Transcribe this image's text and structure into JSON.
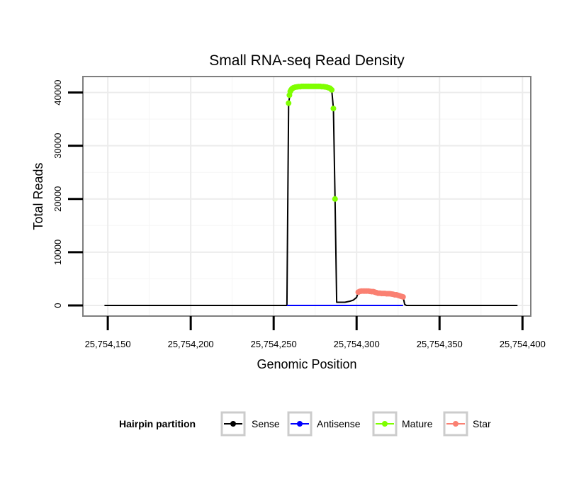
{
  "chart_data": {
    "type": "line",
    "title": "Small RNA-seq Read Density",
    "xlabel": "Genomic Position",
    "ylabel": "Total Reads",
    "xlim": [
      25754135,
      25754405
    ],
    "ylim": [
      -2000,
      43000
    ],
    "x_ticks": [
      25754150,
      25754200,
      25754250,
      25754300,
      25754350,
      25754400
    ],
    "x_tick_labels": [
      "25,754,150",
      "25,754,200",
      "25,754,250",
      "25,754,300",
      "25,754,350",
      "25,754,400"
    ],
    "y_ticks": [
      0,
      10000,
      20000,
      30000,
      40000
    ],
    "y_tick_labels": [
      "0",
      "10000",
      "20000",
      "30000",
      "40000"
    ],
    "grid": true,
    "legend": {
      "title": "Hairpin partition",
      "position": "bottom",
      "entries": [
        {
          "name": "Sense",
          "color": "#000000"
        },
        {
          "name": "Antisense",
          "color": "#0000ff"
        },
        {
          "name": "Mature",
          "color": "#7fff00"
        },
        {
          "name": "Star",
          "color": "#fa8072"
        }
      ]
    },
    "series": [
      {
        "name": "Sense",
        "style": "line",
        "color": "#000000",
        "x": [
          25754148,
          25754258,
          25754259,
          25754260,
          25754262,
          25754265,
          25754270,
          25754275,
          25754280,
          25754284,
          25754285,
          25754286,
          25754287,
          25754288,
          25754290,
          25754293,
          25754296,
          25754298,
          25754300,
          25754301,
          25754305,
          25754310,
          25754315,
          25754320,
          25754325,
          25754327,
          25754328,
          25754329,
          25754330,
          25754397
        ],
        "y": [
          0,
          0,
          38000,
          40000,
          40800,
          41000,
          41100,
          41100,
          41100,
          41000,
          40500,
          37000,
          20000,
          600,
          600,
          600,
          800,
          1000,
          1500,
          2500,
          2700,
          2600,
          2300,
          2200,
          2000,
          1800,
          1600,
          200,
          0,
          0
        ]
      },
      {
        "name": "Antisense",
        "style": "line",
        "color": "#0000ff",
        "x": [
          25754258,
          25754328
        ],
        "y": [
          0,
          0
        ]
      },
      {
        "name": "Mature",
        "style": "points",
        "color": "#7fff00",
        "x": [
          25754259,
          25754259.5,
          25754260,
          25754260.5,
          25754261,
          25754261.5,
          25754262,
          25754263,
          25754264,
          25754265,
          25754266,
          25754267,
          25754268,
          25754269,
          25754270,
          25754271,
          25754272,
          25754273,
          25754274,
          25754275,
          25754276,
          25754277,
          25754278,
          25754279,
          25754280,
          25754281,
          25754282,
          25754283,
          25754284,
          25754285,
          25754286,
          25754287
        ],
        "y": [
          38000,
          39500,
          40200,
          40500,
          40700,
          40800,
          40900,
          41000,
          41050,
          41100,
          41100,
          41150,
          41150,
          41150,
          41150,
          41150,
          41150,
          41150,
          41150,
          41150,
          41150,
          41150,
          41150,
          41100,
          41100,
          41050,
          41000,
          40900,
          40800,
          40500,
          37000,
          20000
        ]
      },
      {
        "name": "Star",
        "style": "points",
        "color": "#fa8072",
        "x": [
          25754301,
          25754302,
          25754303,
          25754304,
          25754305,
          25754306,
          25754307,
          25754308,
          25754309,
          25754310,
          25754311,
          25754312,
          25754313,
          25754314,
          25754315,
          25754316,
          25754317,
          25754318,
          25754319,
          25754320,
          25754321,
          25754322,
          25754323,
          25754324,
          25754325,
          25754326,
          25754327,
          25754328
        ],
        "y": [
          2500,
          2650,
          2700,
          2700,
          2700,
          2700,
          2700,
          2650,
          2600,
          2600,
          2500,
          2400,
          2300,
          2300,
          2250,
          2250,
          2250,
          2200,
          2200,
          2200,
          2150,
          2100,
          2000,
          2000,
          1900,
          1800,
          1700,
          1600
        ]
      }
    ]
  }
}
